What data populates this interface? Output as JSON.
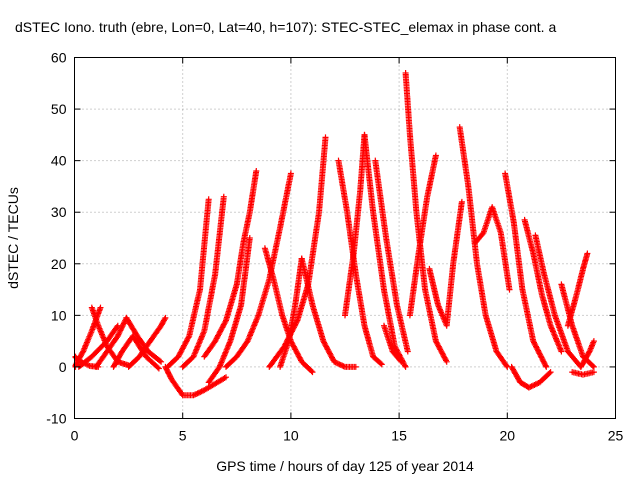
{
  "chart_data": {
    "type": "scatter",
    "title": "dSTEC Iono. truth (ebre, Lon=0, Lat=40, h=107): STEC-STEC_elemax in phase cont. a",
    "xlabel": "GPS time / hours of day 125 of year 2014",
    "ylabel": "dSTEC  / TECUs",
    "xlim": [
      0,
      25
    ],
    "ylim": [
      -10,
      60
    ],
    "xticks": [
      0,
      5,
      10,
      15,
      20,
      25
    ],
    "yticks": [
      -10,
      0,
      10,
      20,
      30,
      40,
      50,
      60
    ],
    "xtick_labels": [
      "0",
      "5",
      "10",
      "15",
      "20",
      "25"
    ],
    "ytick_labels": [
      "-10",
      "0",
      "10",
      "20",
      "30",
      "40",
      "50",
      "60"
    ],
    "grid": true,
    "legend": "none",
    "marker": "+",
    "series_color": "#ff0000",
    "series": [
      {
        "x": [
          0.0,
          0.3,
          0.7,
          1.1
        ],
        "y": [
          2,
          1,
          0.2,
          0
        ]
      },
      {
        "x": [
          0.0,
          0.4,
          0.8,
          1.2
        ],
        "y": [
          0,
          3,
          7,
          11.5
        ]
      },
      {
        "x": [
          0.8,
          1.1,
          1.5,
          2.0,
          2.5
        ],
        "y": [
          11.5,
          8,
          4,
          1,
          0.3
        ]
      },
      {
        "x": [
          0.2,
          0.8,
          1.5,
          2.0
        ],
        "y": [
          0,
          2,
          5,
          8
        ]
      },
      {
        "x": [
          1.8,
          2.2,
          2.7,
          3.3,
          3.9
        ],
        "y": [
          0,
          3,
          6,
          2,
          -0.3
        ]
      },
      {
        "x": [
          1.0,
          1.5,
          2.0,
          2.4
        ],
        "y": [
          0,
          3,
          6,
          9.5
        ]
      },
      {
        "x": [
          2.4,
          2.9,
          3.4,
          4.0
        ],
        "y": [
          9.5,
          6,
          3,
          1
        ]
      },
      {
        "x": [
          2.5,
          3.0,
          3.5,
          4.0,
          4.2
        ],
        "y": [
          0,
          2,
          5,
          8,
          9.5
        ]
      },
      {
        "x": [
          4.2,
          4.5,
          5.0,
          5.5,
          6.0,
          7.0
        ],
        "y": [
          0,
          -2.5,
          -5.5,
          -5.5,
          -4.5,
          -2
        ]
      },
      {
        "x": [
          4.3,
          4.8,
          5.3,
          5.8,
          6.2
        ],
        "y": [
          0,
          2,
          6,
          15,
          32.5
        ]
      },
      {
        "x": [
          5.0,
          5.5,
          6.0,
          6.5,
          6.9
        ],
        "y": [
          0,
          2,
          7,
          18,
          33
        ]
      },
      {
        "x": [
          6.0,
          6.5,
          7.0,
          7.5,
          7.8,
          8.1,
          8.4
        ],
        "y": [
          2,
          5,
          9,
          16,
          24,
          30,
          38
        ]
      },
      {
        "x": [
          6.2,
          6.7,
          7.2,
          7.7,
          8.1
        ],
        "y": [
          -3,
          0,
          5,
          12,
          25
        ]
      },
      {
        "x": [
          7.0,
          7.5,
          8.0,
          8.5,
          9.0,
          9.5,
          10.0
        ],
        "y": [
          0,
          2,
          5,
          10,
          17,
          27,
          37.5
        ]
      },
      {
        "x": [
          8.8,
          9.2,
          9.6,
          10.0,
          10.5,
          11.0
        ],
        "y": [
          23,
          17,
          10,
          5,
          1,
          -1
        ]
      },
      {
        "x": [
          9.5,
          9.9,
          10.2,
          10.5
        ],
        "y": [
          0,
          5,
          12,
          21
        ]
      },
      {
        "x": [
          9.0,
          9.7,
          10.3,
          10.8,
          11.3,
          11.6
        ],
        "y": [
          0,
          4,
          9,
          16,
          30,
          44.5
        ]
      },
      {
        "x": [
          10.5,
          11.0,
          11.5,
          12.0,
          12.5,
          13.0
        ],
        "y": [
          21,
          12,
          5,
          1,
          0,
          0
        ]
      },
      {
        "x": [
          12.2,
          12.6,
          13.0,
          13.4,
          13.8,
          14.2
        ],
        "y": [
          40,
          30,
          18,
          8,
          2,
          0.5
        ]
      },
      {
        "x": [
          12.5,
          12.9,
          13.2,
          13.4
        ],
        "y": [
          10,
          22,
          34,
          45
        ]
      },
      {
        "x": [
          13.4,
          13.8,
          14.3,
          14.8,
          15.3
        ],
        "y": [
          45,
          30,
          15,
          4,
          0
        ]
      },
      {
        "x": [
          13.9,
          14.4,
          14.9,
          15.4
        ],
        "y": [
          40,
          25,
          12,
          3
        ]
      },
      {
        "x": [
          14.3,
          14.7,
          15.1
        ],
        "y": [
          8,
          3,
          1
        ]
      },
      {
        "x": [
          15.3,
          15.5,
          15.8,
          16.2,
          16.7,
          17.2
        ],
        "y": [
          57,
          45,
          30,
          15,
          5,
          1
        ]
      },
      {
        "x": [
          15.5,
          15.9,
          16.3,
          16.7
        ],
        "y": [
          10,
          22,
          33,
          41
        ]
      },
      {
        "x": [
          16.4,
          16.8,
          17.2,
          17.5,
          17.9
        ],
        "y": [
          19,
          12,
          8,
          20,
          32
        ]
      },
      {
        "x": [
          17.8,
          18.2,
          18.6,
          19.0,
          19.5,
          20.0
        ],
        "y": [
          46.5,
          35,
          20,
          10,
          3,
          0
        ]
      },
      {
        "x": [
          18.5,
          18.9,
          19.3,
          19.7,
          20.1
        ],
        "y": [
          24,
          26,
          31,
          26,
          15
        ]
      },
      {
        "x": [
          19.9,
          20.3,
          20.7,
          21.2,
          21.8
        ],
        "y": [
          37.5,
          28,
          15,
          5,
          0
        ]
      },
      {
        "x": [
          20.2,
          20.6,
          21.0,
          21.5,
          22.0
        ],
        "y": [
          0,
          -3,
          -4,
          -3,
          -1
        ]
      },
      {
        "x": [
          20.8,
          21.2,
          21.6,
          22.0,
          22.5
        ],
        "y": [
          28.5,
          22,
          14,
          8,
          3
        ]
      },
      {
        "x": [
          21.3,
          21.7,
          22.2,
          22.8,
          23.4
        ],
        "y": [
          25.5,
          18,
          10,
          3,
          0
        ]
      },
      {
        "x": [
          22.5,
          23.0,
          23.5,
          24.0
        ],
        "y": [
          16,
          8,
          2,
          0
        ]
      },
      {
        "x": [
          22.8,
          23.2,
          23.5,
          23.7
        ],
        "y": [
          8,
          14,
          19,
          22
        ]
      },
      {
        "x": [
          23.0,
          23.5,
          24.0
        ],
        "y": [
          -1,
          -1.5,
          -1
        ]
      },
      {
        "x": [
          23.4,
          23.8,
          24.0
        ],
        "y": [
          0,
          3,
          5
        ]
      }
    ]
  }
}
